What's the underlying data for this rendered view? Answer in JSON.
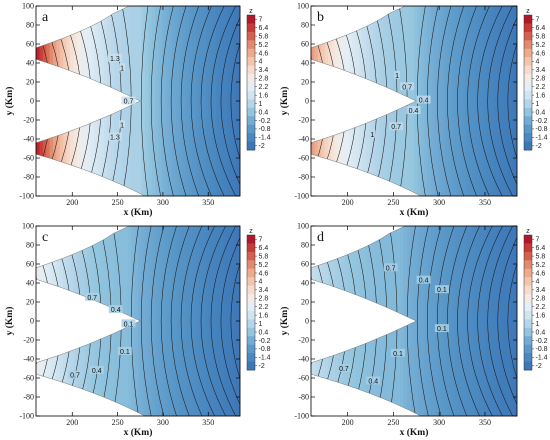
{
  "chart_data": {
    "type": "contour",
    "layout": "2x2",
    "shared": {
      "xlabel": "x (Km)",
      "ylabel": "y (Km)",
      "xlim": [
        160,
        385
      ],
      "ylim": [
        -100,
        100
      ],
      "xticks": [
        200,
        250,
        300,
        350
      ],
      "yticks": [
        -100,
        -80,
        -60,
        -40,
        -20,
        0,
        20,
        40,
        60,
        80,
        100
      ],
      "colorbar": {
        "title": "z",
        "levels": [
          7,
          6.4,
          5.8,
          5.2,
          4.6,
          4,
          3.4,
          2.8,
          2.2,
          1.6,
          1,
          0.4,
          -0.2,
          -0.8,
          -1.4,
          -2
        ],
        "colors": [
          "#b2182b",
          "#c73a35",
          "#d6604d",
          "#e08a70",
          "#eeaa8d",
          "#f4c5ae",
          "#f7dccd",
          "#f4ebe6",
          "#e4eef6",
          "#d1e5f0",
          "#b6d5ea",
          "#92c5de",
          "#74acd4",
          "#5b99c9",
          "#4a88c0",
          "#3d77b8"
        ]
      },
      "domain": {
        "upper_outer_notch_y": 50,
        "lower_outer_notch_y": -50,
        "wedge_tip": [
          275,
          0
        ],
        "upper_boundary_end": [
          300,
          100
        ],
        "lower_boundary_end": [
          280,
          -100
        ]
      }
    },
    "panels": [
      {
        "label": "a",
        "contour_labels": [
          {
            "text": "1.3",
            "x": 247,
            "y": 45
          },
          {
            "text": "1",
            "x": 255,
            "y": 35
          },
          {
            "text": "0.7",
            "x": 262,
            "y": 0
          },
          {
            "text": "1",
            "x": 255,
            "y": -25
          },
          {
            "text": "1.3",
            "x": 247,
            "y": -38
          }
        ]
      },
      {
        "label": "b",
        "contour_labels": [
          {
            "text": "1",
            "x": 254,
            "y": 27
          },
          {
            "text": "0.7",
            "x": 265,
            "y": 15
          },
          {
            "text": "0.4",
            "x": 283,
            "y": 1
          },
          {
            "text": "0.4",
            "x": 272,
            "y": -10
          },
          {
            "text": "0.7",
            "x": 253,
            "y": -27
          },
          {
            "text": "1",
            "x": 227,
            "y": -35
          }
        ]
      },
      {
        "label": "c",
        "contour_labels": [
          {
            "text": "0.7",
            "x": 222,
            "y": 25
          },
          {
            "text": "0.4",
            "x": 248,
            "y": 12
          },
          {
            "text": "0.1",
            "x": 262,
            "y": -3
          },
          {
            "text": "0.1",
            "x": 258,
            "y": -32
          },
          {
            "text": "0.4",
            "x": 227,
            "y": -52
          },
          {
            "text": "0.7",
            "x": 203,
            "y": -57
          }
        ]
      },
      {
        "label": "d",
        "contour_labels": [
          {
            "text": "0.7",
            "x": 247,
            "y": 56
          },
          {
            "text": "0.4",
            "x": 283,
            "y": 43
          },
          {
            "text": "0.1",
            "x": 303,
            "y": 33
          },
          {
            "text": "0.1",
            "x": 303,
            "y": -8
          },
          {
            "text": "0.1",
            "x": 255,
            "y": -34
          },
          {
            "text": "0.7",
            "x": 196,
            "y": -50
          },
          {
            "text": "0.4",
            "x": 228,
            "y": -63
          }
        ]
      }
    ]
  }
}
